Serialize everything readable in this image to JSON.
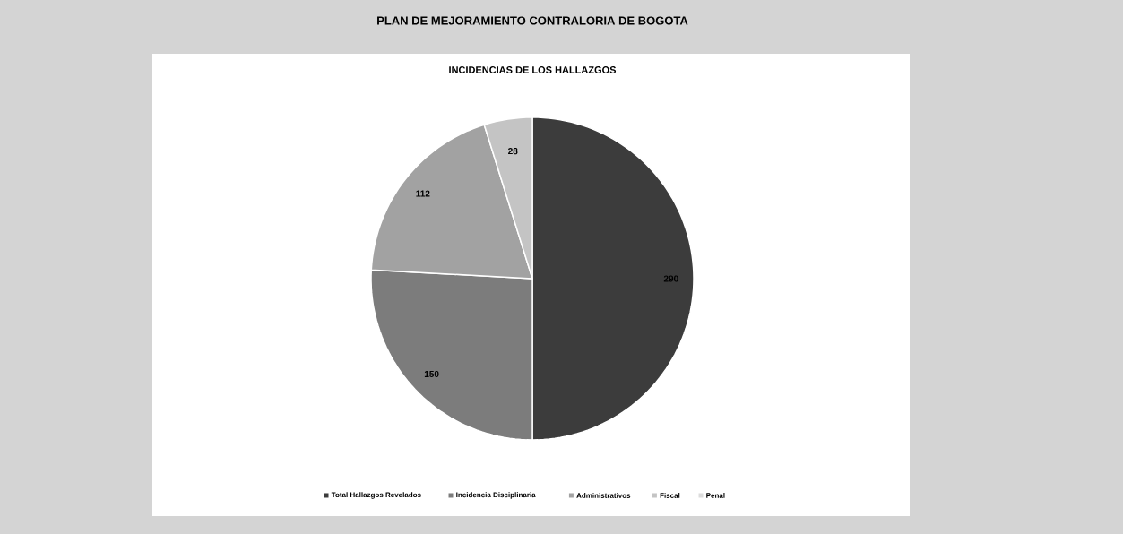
{
  "chart_data": {
    "type": "pie",
    "title": "PLAN DE MEJORAMIENTO CONTRALORIA DE BOGOTA",
    "subtitle": "INCIDENCIAS DE LOS HALLAZGOS",
    "categories": [
      "Total Hallazgos Revelados",
      "Incidencia Disciplinaria",
      "Administrativos",
      "Fiscal",
      "Penal"
    ],
    "values": [
      290,
      150,
      112,
      28,
      0
    ],
    "colors": [
      "#3c3c3c",
      "#7c7c7c",
      "#a2a2a2",
      "#c4c4c4",
      "#dcdcdc"
    ],
    "data_labels": true,
    "legend": "bottom"
  }
}
